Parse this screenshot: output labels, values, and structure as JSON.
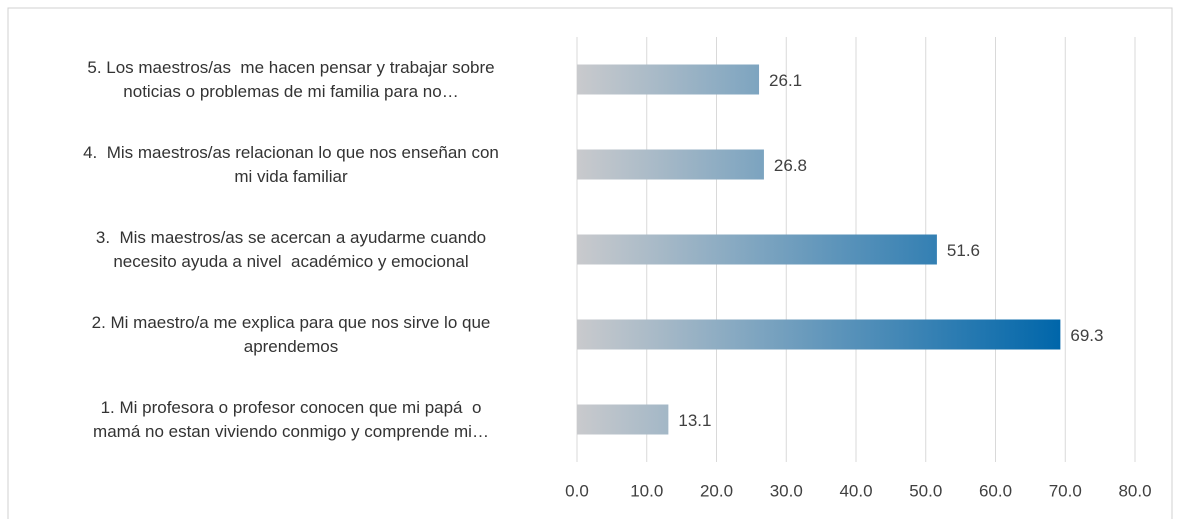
{
  "chart_data": {
    "type": "hbar",
    "categories": [
      "5. Los maestros/as  me hacen pensar y trabajar sobre\nnoticias o problemas de mi familia para no…",
      "4.  Mis maestros/as relacionan lo que nos enseñan con\nmi vida familiar",
      "3.  Mis maestros/as se acercan a ayudarme cuando\nnecesito ayuda a nivel  académico y emocional",
      "2. Mi maestro/a me explica para que nos sirve lo que\naprendemos",
      "1. Mi profesora o profesor conocen que mi papá  o\nmamá no estan viviendo conmigo y comprende mi…"
    ],
    "values": [
      26.1,
      26.8,
      51.6,
      69.3,
      13.1
    ],
    "gradient": [
      "#c9cacd",
      "#0066aa"
    ],
    "xlim": [
      0,
      80
    ],
    "xticks": [
      {
        "value": 0,
        "label": "0.0"
      },
      {
        "value": 10,
        "label": "10.0"
      },
      {
        "value": 20,
        "label": "20.0"
      },
      {
        "value": 30,
        "label": "30.0"
      },
      {
        "value": 40,
        "label": "40.0"
      },
      {
        "value": 50,
        "label": "50.0"
      },
      {
        "value": 60,
        "label": "60.0"
      },
      {
        "value": 70,
        "label": "70.0"
      },
      {
        "value": 80,
        "label": "80.0"
      }
    ],
    "grid": true
  }
}
